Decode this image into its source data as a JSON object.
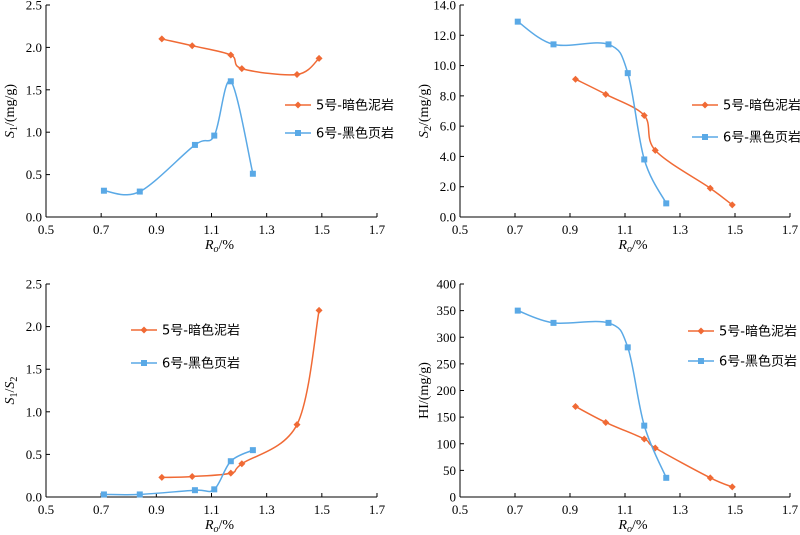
{
  "colors": {
    "series5": "#f06a35",
    "series6": "#5aa9e6"
  },
  "chart_data": [
    {
      "type": "line",
      "ylabel_main": "S",
      "ylabel_sub": "1",
      "ylabel_rest": "/(mg/g)",
      "xlabel_main": "R",
      "xlabel_sub": "o",
      "xlabel_rest": "/%",
      "xlim": [
        0.5,
        1.7
      ],
      "ylim": [
        0,
        2.5
      ],
      "xticks": [
        "0.5",
        "0.7",
        "0.9",
        "1.1",
        "1.3",
        "1.5",
        "1.7"
      ],
      "yticks": [
        "0.0",
        "0.5",
        "1.0",
        "1.5",
        "2.0",
        "2.5"
      ],
      "legend_position": "right",
      "series": [
        {
          "name": "5号-暗色泥岩",
          "marker": "diamond",
          "x": [
            0.92,
            1.03,
            1.17,
            1.21,
            1.41,
            1.49
          ],
          "y": [
            2.1,
            2.02,
            1.91,
            1.75,
            1.68,
            1.87
          ]
        },
        {
          "name": "6号-黑色页岩",
          "marker": "square",
          "x": [
            0.71,
            0.84,
            1.04,
            1.11,
            1.17,
            1.25
          ],
          "y": [
            0.31,
            0.3,
            0.85,
            0.96,
            1.6,
            0.51
          ]
        }
      ]
    },
    {
      "type": "line",
      "ylabel_main": "S",
      "ylabel_sub": "2",
      "ylabel_rest": "/(mg/g)",
      "xlabel_main": "R",
      "xlabel_sub": "o",
      "xlabel_rest": "/%",
      "xlim": [
        0.5,
        1.7
      ],
      "ylim": [
        0,
        14
      ],
      "xticks": [
        "0.5",
        "0.7",
        "0.9",
        "1.1",
        "1.3",
        "1.5",
        "1.7"
      ],
      "yticks": [
        "0.0",
        "2.0",
        "4.0",
        "6.0",
        "8.0",
        "10.0",
        "12.0",
        "14.0"
      ],
      "legend_position": "right",
      "series": [
        {
          "name": "5号-暗色泥岩",
          "marker": "diamond",
          "x": [
            0.92,
            1.03,
            1.17,
            1.21,
            1.41,
            1.49
          ],
          "y": [
            9.1,
            8.1,
            6.7,
            4.4,
            1.9,
            0.8
          ]
        },
        {
          "name": "6号-黑色页岩",
          "marker": "square",
          "x": [
            0.71,
            0.84,
            1.04,
            1.11,
            1.17,
            1.25
          ],
          "y": [
            12.9,
            11.4,
            11.4,
            9.5,
            3.8,
            0.9
          ]
        }
      ]
    },
    {
      "type": "line",
      "ylabel_main": "S",
      "ylabel_sub": "1",
      "ylabel_rest": "/",
      "ylabel_main2": "S",
      "ylabel_sub2": "2",
      "xlabel_main": "R",
      "xlabel_sub": "o",
      "xlabel_rest": "/%",
      "xlim": [
        0.5,
        1.7
      ],
      "ylim": [
        0,
        2.5
      ],
      "xticks": [
        "0.5",
        "0.7",
        "0.9",
        "1.1",
        "1.3",
        "1.5",
        "1.7"
      ],
      "yticks": [
        "0.0",
        "0.5",
        "1.0",
        "1.5",
        "2.0",
        "2.5"
      ],
      "legend_position": "top-left",
      "series": [
        {
          "name": "5号-暗色泥岩",
          "marker": "diamond",
          "x": [
            0.92,
            1.03,
            1.17,
            1.21,
            1.41,
            1.49
          ],
          "y": [
            0.23,
            0.24,
            0.28,
            0.39,
            0.85,
            2.19
          ]
        },
        {
          "name": "6号-黑色页岩",
          "marker": "square",
          "x": [
            0.71,
            0.84,
            1.04,
            1.11,
            1.17,
            1.25
          ],
          "y": [
            0.03,
            0.03,
            0.08,
            0.09,
            0.42,
            0.55
          ]
        }
      ]
    },
    {
      "type": "line",
      "ylabel_main": "HI/(mg/g)",
      "ylabel_sub": "",
      "ylabel_rest": "",
      "xlabel_main": "R",
      "xlabel_sub": "o",
      "xlabel_rest": "/%",
      "xlim": [
        0.5,
        1.7
      ],
      "ylim": [
        0,
        400
      ],
      "xticks": [
        "0.5",
        "0.7",
        "0.9",
        "1.1",
        "1.3",
        "1.5",
        "1.7"
      ],
      "yticks": [
        "0",
        "50",
        "100",
        "150",
        "200",
        "250",
        "300",
        "350",
        "400"
      ],
      "legend_position": "right",
      "series": [
        {
          "name": "5号-暗色泥岩",
          "marker": "diamond",
          "x": [
            0.92,
            1.03,
            1.17,
            1.21,
            1.41,
            1.49
          ],
          "y": [
            170,
            140,
            109,
            92,
            36,
            19
          ]
        },
        {
          "name": "6号-黑色页岩",
          "marker": "square",
          "x": [
            0.71,
            0.84,
            1.04,
            1.11,
            1.17,
            1.25
          ],
          "y": [
            350,
            327,
            327,
            281,
            134,
            36
          ]
        }
      ]
    }
  ]
}
